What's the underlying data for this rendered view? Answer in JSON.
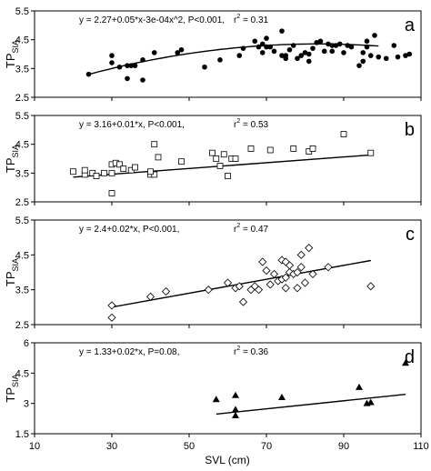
{
  "figure": {
    "shared_x_axis": {
      "label": "SVL (cm)",
      "ticks": [
        "10",
        "30",
        "50",
        "70",
        "90",
        "110"
      ]
    }
  },
  "chart_data": [
    {
      "type": "scatter",
      "panel": "a",
      "marker": "filled-circle",
      "xlim": [
        10,
        110
      ],
      "ylim": [
        2.5,
        5.5
      ],
      "yticks": [
        "2.5",
        "3.5",
        "4.5",
        "5.5"
      ],
      "ylabel": "TP",
      "ylabel_sub": "SIA",
      "equation": "y = 2.27+0.05*x-3e-04x^2, P<0.001,",
      "r2": "= 0.31",
      "fit": {
        "form": "quadratic",
        "coeffs": [
          2.27,
          0.05,
          -0.0003
        ],
        "x_range": [
          24,
          99
        ]
      },
      "points": [
        [
          24,
          3.3
        ],
        [
          30,
          3.95
        ],
        [
          30,
          3.7
        ],
        [
          32,
          3.55
        ],
        [
          34,
          3.15
        ],
        [
          34,
          3.6
        ],
        [
          35,
          3.6
        ],
        [
          36,
          3.6
        ],
        [
          38,
          3.8
        ],
        [
          38,
          3.1
        ],
        [
          41,
          4.05
        ],
        [
          47,
          4.05
        ],
        [
          48,
          4.15
        ],
        [
          54,
          3.55
        ],
        [
          58,
          3.8
        ],
        [
          63,
          3.95
        ],
        [
          64,
          4.2
        ],
        [
          67,
          4.45
        ],
        [
          68,
          4.25
        ],
        [
          69,
          4.05
        ],
        [
          69,
          4.35
        ],
        [
          70,
          4.25
        ],
        [
          70,
          4.55
        ],
        [
          71,
          4.25
        ],
        [
          72,
          4.1
        ],
        [
          74,
          3.95
        ],
        [
          74,
          4.8
        ],
        [
          75,
          3.85
        ],
        [
          75,
          3.95
        ],
        [
          76,
          4.15
        ],
        [
          77,
          4.3
        ],
        [
          78,
          3.85
        ],
        [
          79,
          3.95
        ],
        [
          80,
          4.05
        ],
        [
          81,
          4.0
        ],
        [
          81,
          3.75
        ],
        [
          82,
          4.2
        ],
        [
          83,
          4.4
        ],
        [
          84,
          4.45
        ],
        [
          85,
          4.1
        ],
        [
          86,
          4.35
        ],
        [
          87,
          4.1
        ],
        [
          87,
          4.3
        ],
        [
          88,
          4.3
        ],
        [
          89,
          4.35
        ],
        [
          90,
          4.05
        ],
        [
          91,
          4.3
        ],
        [
          92,
          4.25
        ],
        [
          94,
          3.6
        ],
        [
          95,
          3.75
        ],
        [
          95,
          4.05
        ],
        [
          96,
          4.25
        ],
        [
          96,
          4.45
        ],
        [
          97,
          3.95
        ],
        [
          98,
          4.65
        ],
        [
          99,
          3.9
        ],
        [
          101,
          3.85
        ],
        [
          103,
          4.3
        ],
        [
          104,
          3.9
        ],
        [
          106,
          3.95
        ],
        [
          107,
          4.0
        ]
      ]
    },
    {
      "type": "scatter",
      "panel": "b",
      "marker": "open-square",
      "xlim": [
        10,
        110
      ],
      "ylim": [
        2.5,
        5.5
      ],
      "yticks": [
        "2.5",
        "3.5",
        "4.5",
        "5.5"
      ],
      "ylabel": "TP",
      "ylabel_sub": "SIA",
      "equation": "y = 3.16+0.01*x, P<0.001,",
      "r2": "= 0.53",
      "fit": {
        "form": "linear",
        "coeffs": [
          3.16,
          0.01
        ],
        "x_range": [
          20,
          97
        ]
      },
      "points": [
        [
          20,
          3.55
        ],
        [
          23,
          3.45
        ],
        [
          23,
          3.6
        ],
        [
          25,
          3.5
        ],
        [
          26,
          3.4
        ],
        [
          28,
          3.5
        ],
        [
          30,
          3.8
        ],
        [
          30,
          3.5
        ],
        [
          30,
          2.8
        ],
        [
          31,
          3.85
        ],
        [
          32,
          3.8
        ],
        [
          33,
          3.65
        ],
        [
          35,
          3.6
        ],
        [
          36,
          3.7
        ],
        [
          40,
          3.45
        ],
        [
          41,
          3.45
        ],
        [
          40,
          3.55
        ],
        [
          41,
          4.5
        ],
        [
          42,
          4.05
        ],
        [
          48,
          3.9
        ],
        [
          56,
          4.2
        ],
        [
          57,
          4.0
        ],
        [
          58,
          3.75
        ],
        [
          59,
          4.15
        ],
        [
          60,
          3.4
        ],
        [
          61,
          4.0
        ],
        [
          62,
          4.0
        ],
        [
          66,
          4.35
        ],
        [
          71,
          4.3
        ],
        [
          77,
          4.35
        ],
        [
          81,
          4.25
        ],
        [
          82,
          4.35
        ],
        [
          90,
          4.85
        ],
        [
          97,
          4.2
        ]
      ]
    },
    {
      "type": "scatter",
      "panel": "c",
      "marker": "open-diamond",
      "xlim": [
        10,
        110
      ],
      "ylim": [
        2.5,
        5.5
      ],
      "yticks": [
        "2.5",
        "3.5",
        "4.5",
        "5.5"
      ],
      "ylabel": "TP",
      "ylabel_sub": "SIA",
      "equation": "y = 2.4+0.02*x, P<0.001,",
      "r2": "= 0.47",
      "fit": {
        "form": "linear",
        "coeffs": [
          2.4,
          0.02
        ],
        "x_range": [
          30,
          97
        ]
      },
      "points": [
        [
          30,
          3.05
        ],
        [
          30,
          2.7
        ],
        [
          40,
          3.3
        ],
        [
          44,
          3.45
        ],
        [
          55,
          3.5
        ],
        [
          60,
          3.7
        ],
        [
          62,
          3.55
        ],
        [
          63,
          3.6
        ],
        [
          64,
          3.15
        ],
        [
          66,
          3.5
        ],
        [
          67,
          3.6
        ],
        [
          68,
          3.5
        ],
        [
          69,
          4.3
        ],
        [
          70,
          4.05
        ],
        [
          71,
          3.65
        ],
        [
          72,
          3.95
        ],
        [
          73,
          3.75
        ],
        [
          74,
          3.8
        ],
        [
          74,
          4.35
        ],
        [
          75,
          3.85
        ],
        [
          75,
          4.3
        ],
        [
          75,
          3.55
        ],
        [
          76,
          4.0
        ],
        [
          76,
          4.2
        ],
        [
          77,
          3.95
        ],
        [
          78,
          4.0
        ],
        [
          78,
          3.55
        ],
        [
          79,
          4.5
        ],
        [
          79,
          4.15
        ],
        [
          80,
          3.7
        ],
        [
          81,
          4.7
        ],
        [
          82,
          3.95
        ],
        [
          86,
          4.15
        ],
        [
          97,
          3.6
        ]
      ]
    },
    {
      "type": "scatter",
      "panel": "d",
      "marker": "filled-triangle",
      "xlim": [
        10,
        110
      ],
      "ylim": [
        1.5,
        6
      ],
      "yticks": [
        "1.5",
        "3",
        "4.5",
        "6"
      ],
      "ylabel": "TP",
      "ylabel_sub": "SIA",
      "equation": "y = 1.33+0.02*x, P=0.08,",
      "r2": "= 0.36",
      "fit": {
        "form": "linear",
        "coeffs": [
          1.33,
          0.02
        ],
        "x_range": [
          57,
          106
        ]
      },
      "points": [
        [
          57,
          3.2
        ],
        [
          62,
          3.4
        ],
        [
          62,
          2.7
        ],
        [
          62,
          2.4
        ],
        [
          74,
          3.3
        ],
        [
          94,
          3.8
        ],
        [
          96,
          3.0
        ],
        [
          97,
          3.05
        ],
        [
          106,
          5.0
        ]
      ]
    }
  ]
}
